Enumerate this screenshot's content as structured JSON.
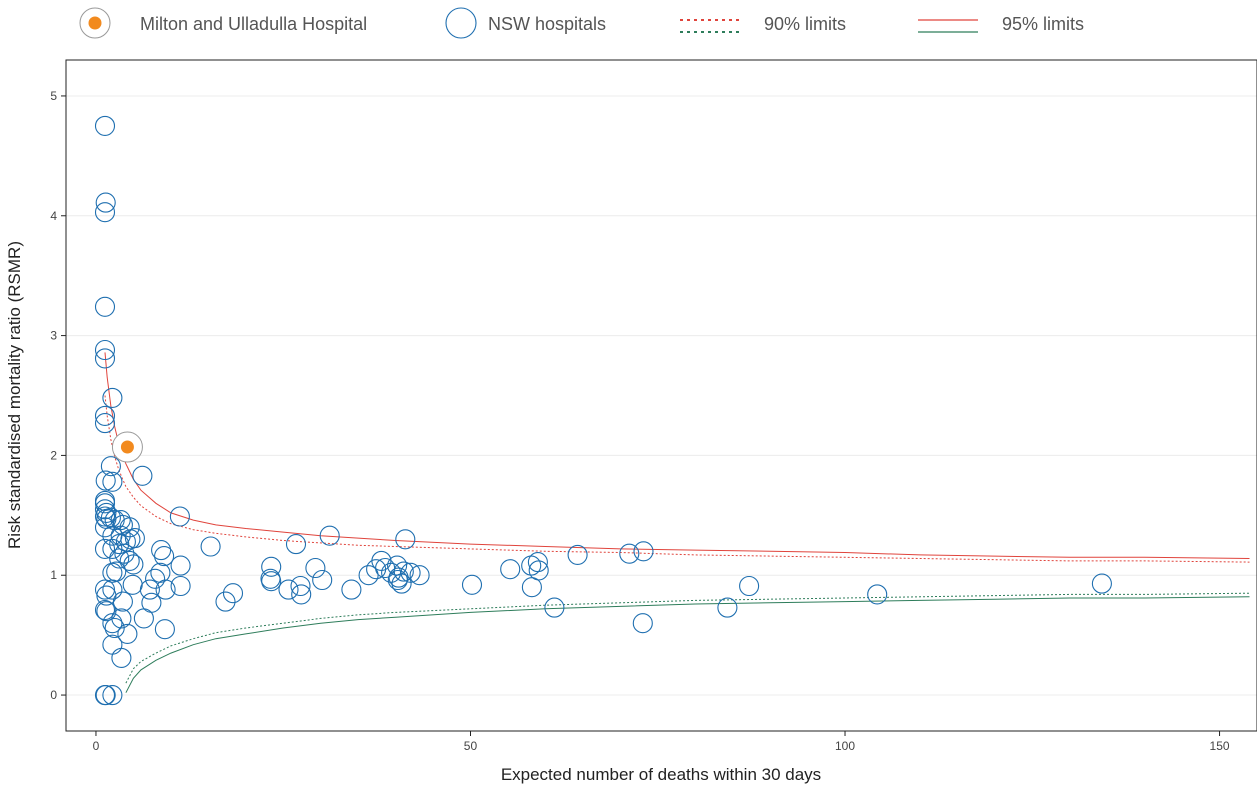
{
  "colors": {
    "hospital_marker": "#1f6fb0",
    "highlight_fill": "#f28a1e",
    "upper_limit": "#e0443c",
    "lower_limit": "#2e7d5b",
    "grid": "#ececec",
    "frame": "#222222"
  },
  "legend": {
    "highlight": "Milton and Ulladulla Hospital",
    "hospitals": "NSW hospitals",
    "limits90": "90% limits",
    "limits95": "95% limits"
  },
  "chart_data": {
    "type": "scatter",
    "xlabel": "Expected number of deaths within 30 days",
    "ylabel": "Risk standardised mortality ratio (RSMR)",
    "xlim": [
      -4,
      155
    ],
    "ylim": [
      -0.3,
      5.3
    ],
    "xticks": [
      0,
      50,
      100,
      150
    ],
    "yticks": [
      0,
      1,
      2,
      3,
      4,
      5
    ],
    "grid": true,
    "legend_position": "top",
    "highlight": {
      "name": "Milton and Ulladulla Hospital",
      "x": 4.2,
      "y": 2.07
    },
    "series": [
      {
        "name": "NSW hospitals",
        "points": [
          [
            1.2,
            4.75
          ],
          [
            1.3,
            4.11
          ],
          [
            1.2,
            4.03
          ],
          [
            1.2,
            3.24
          ],
          [
            1.2,
            2.88
          ],
          [
            1.2,
            2.81
          ],
          [
            1.2,
            2.33
          ],
          [
            1.2,
            2.27
          ],
          [
            2.2,
            2.48
          ],
          [
            2.0,
            1.91
          ],
          [
            2.2,
            1.78
          ],
          [
            1.3,
            1.79
          ],
          [
            1.2,
            1.62
          ],
          [
            1.2,
            1.6
          ],
          [
            1.2,
            1.55
          ],
          [
            1.4,
            1.52
          ],
          [
            1.2,
            1.49
          ],
          [
            1.4,
            1.47
          ],
          [
            2.0,
            1.48
          ],
          [
            2.5,
            1.46
          ],
          [
            3.3,
            1.46
          ],
          [
            1.2,
            1.4
          ],
          [
            3.6,
            1.42
          ],
          [
            4.5,
            1.4
          ],
          [
            2.2,
            1.33
          ],
          [
            3.3,
            1.33
          ],
          [
            4.6,
            1.3
          ],
          [
            5.2,
            1.31
          ],
          [
            4.0,
            1.28
          ],
          [
            3.1,
            1.26
          ],
          [
            2.2,
            1.22
          ],
          [
            1.2,
            1.22
          ],
          [
            3.8,
            1.18
          ],
          [
            3.1,
            1.14
          ],
          [
            4.5,
            1.12
          ],
          [
            5.0,
            1.09
          ],
          [
            2.2,
            1.02
          ],
          [
            2.7,
            1.03
          ],
          [
            4.9,
            0.92
          ],
          [
            2.2,
            0.88
          ],
          [
            1.2,
            0.88
          ],
          [
            1.4,
            0.83
          ],
          [
            3.6,
            0.78
          ],
          [
            1.2,
            0.71
          ],
          [
            1.4,
            0.7
          ],
          [
            3.4,
            0.64
          ],
          [
            2.2,
            0.6
          ],
          [
            2.5,
            0.56
          ],
          [
            4.2,
            0.51
          ],
          [
            2.2,
            0.42
          ],
          [
            3.4,
            0.31
          ],
          [
            1.2,
            0.0
          ],
          [
            1.3,
            0.0
          ],
          [
            2.2,
            0.0
          ],
          [
            6.2,
            1.83
          ],
          [
            11.2,
            1.49
          ],
          [
            8.7,
            1.21
          ],
          [
            9.1,
            1.16
          ],
          [
            11.3,
            1.08
          ],
          [
            8.6,
            1.02
          ],
          [
            7.9,
            0.97
          ],
          [
            11.3,
            0.91
          ],
          [
            9.3,
            0.88
          ],
          [
            7.2,
            0.88
          ],
          [
            7.4,
            0.77
          ],
          [
            6.4,
            0.64
          ],
          [
            9.2,
            0.55
          ],
          [
            15.3,
            1.24
          ],
          [
            18.3,
            0.85
          ],
          [
            17.3,
            0.78
          ],
          [
            23.4,
            1.07
          ],
          [
            23.3,
            0.97
          ],
          [
            23.4,
            0.95
          ],
          [
            26.7,
            1.26
          ],
          [
            29.3,
            1.06
          ],
          [
            30.2,
            0.96
          ],
          [
            25.7,
            0.88
          ],
          [
            27.3,
            0.91
          ],
          [
            27.4,
            0.84
          ],
          [
            31.2,
            1.33
          ],
          [
            34.1,
            0.88
          ],
          [
            36.4,
            1.0
          ],
          [
            38.1,
            1.12
          ],
          [
            37.4,
            1.05
          ],
          [
            38.6,
            1.06
          ],
          [
            40.2,
            1.08
          ],
          [
            39.4,
            1.02
          ],
          [
            41.1,
            1.03
          ],
          [
            40.4,
            0.98
          ],
          [
            40.3,
            0.96
          ],
          [
            41.3,
            1.3
          ],
          [
            42.0,
            1.02
          ],
          [
            43.2,
            1.0
          ],
          [
            40.8,
            0.93
          ],
          [
            50.2,
            0.92
          ],
          [
            55.3,
            1.05
          ],
          [
            58.1,
            1.08
          ],
          [
            59.0,
            1.11
          ],
          [
            59.1,
            1.04
          ],
          [
            58.2,
            0.9
          ],
          [
            61.2,
            0.73
          ],
          [
            64.3,
            1.17
          ],
          [
            71.2,
            1.18
          ],
          [
            73.1,
            1.2
          ],
          [
            73.0,
            0.6
          ],
          [
            84.3,
            0.73
          ],
          [
            87.2,
            0.91
          ],
          [
            104.3,
            0.84
          ],
          [
            134.3,
            0.93
          ]
        ]
      }
    ],
    "limits": {
      "x": [
        1.2,
        1.5,
        2,
        2.5,
        3,
        3.5,
        4,
        5,
        6,
        8,
        10,
        13,
        16,
        20,
        25,
        30,
        35,
        40,
        50,
        60,
        70,
        80,
        90,
        100,
        110,
        120,
        130,
        140,
        154
      ],
      "upper95": [
        2.86,
        2.65,
        2.41,
        2.24,
        2.11,
        2.01,
        1.93,
        1.8,
        1.71,
        1.6,
        1.52,
        1.46,
        1.42,
        1.39,
        1.36,
        1.33,
        1.31,
        1.29,
        1.26,
        1.24,
        1.22,
        1.21,
        1.2,
        1.19,
        1.17,
        1.16,
        1.15,
        1.15,
        1.14
      ],
      "upper90": [
        2.5,
        2.33,
        2.13,
        1.99,
        1.89,
        1.81,
        1.74,
        1.65,
        1.58,
        1.49,
        1.43,
        1.38,
        1.35,
        1.32,
        1.29,
        1.27,
        1.25,
        1.24,
        1.22,
        1.2,
        1.19,
        1.17,
        1.16,
        1.15,
        1.14,
        1.13,
        1.12,
        1.12,
        1.11
      ],
      "lower90": [
        null,
        null,
        null,
        null,
        null,
        null,
        0.1,
        0.22,
        0.28,
        0.35,
        0.41,
        0.47,
        0.52,
        0.56,
        0.6,
        0.64,
        0.67,
        0.69,
        0.72,
        0.75,
        0.77,
        0.79,
        0.8,
        0.81,
        0.82,
        0.83,
        0.84,
        0.84,
        0.85
      ],
      "lower95": [
        null,
        null,
        null,
        null,
        null,
        null,
        0.02,
        0.14,
        0.21,
        0.29,
        0.35,
        0.42,
        0.47,
        0.51,
        0.56,
        0.6,
        0.63,
        0.65,
        0.69,
        0.72,
        0.74,
        0.76,
        0.77,
        0.78,
        0.79,
        0.8,
        0.81,
        0.81,
        0.82
      ]
    }
  }
}
